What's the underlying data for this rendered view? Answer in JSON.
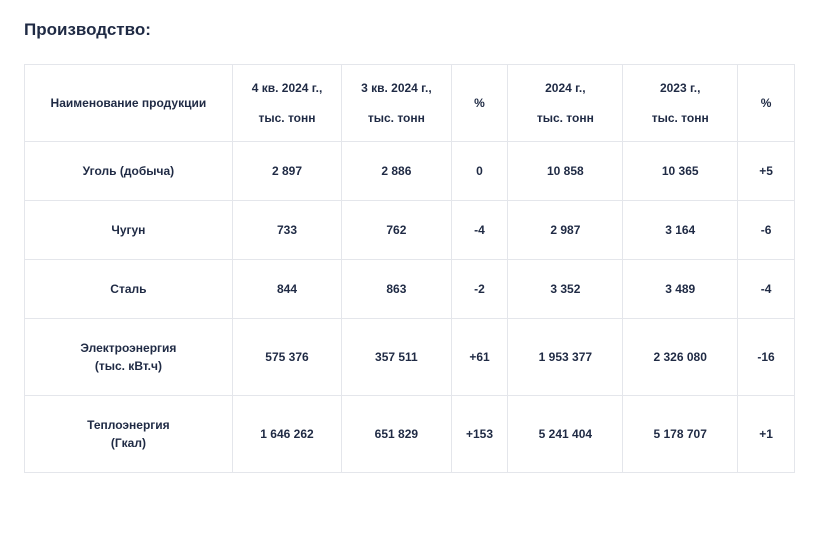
{
  "title": "Производство:",
  "table": {
    "headers": {
      "name": "Наименование продукции",
      "q4": "4 кв. 2024 г.,",
      "q3": "3 кв. 2024 г.,",
      "pct1": "%",
      "y2024": "2024 г.,",
      "y2023": "2023 г.,",
      "pct2": "%",
      "unit": "тыс. тонн"
    },
    "rows": [
      {
        "name": "Уголь (добыча)",
        "sub": "",
        "q4": "2 897",
        "q3": "2 886",
        "pct1": "0",
        "y2024": "10 858",
        "y2023": "10 365",
        "pct2": "+5"
      },
      {
        "name": "Чугун",
        "sub": "",
        "q4": "733",
        "q3": "762",
        "pct1": "-4",
        "y2024": "2 987",
        "y2023": "3 164",
        "pct2": "-6"
      },
      {
        "name": "Сталь",
        "sub": "",
        "q4": "844",
        "q3": "863",
        "pct1": "-2",
        "y2024": "3 352",
        "y2023": "3 489",
        "pct2": "-4"
      },
      {
        "name": "Электроэнергия",
        "sub": "(тыс. кВт.ч)",
        "q4": "575 376",
        "q3": "357 511",
        "pct1": "+61",
        "y2024": "1 953 377",
        "y2023": "2 326 080",
        "pct2": "-16"
      },
      {
        "name": "Теплоэнергия",
        "sub": "(Гкал)",
        "q4": "1 646 262",
        "q3": "651 829",
        "pct1": "+153",
        "y2024": "5 241 404",
        "y2023": "5 178 707",
        "pct2": "+1"
      }
    ]
  },
  "style": {
    "text_color": "#1f2a44",
    "border_color": "#e4e6eb",
    "background": "#ffffff",
    "font_size_title": 17,
    "font_size_cell": 12
  }
}
